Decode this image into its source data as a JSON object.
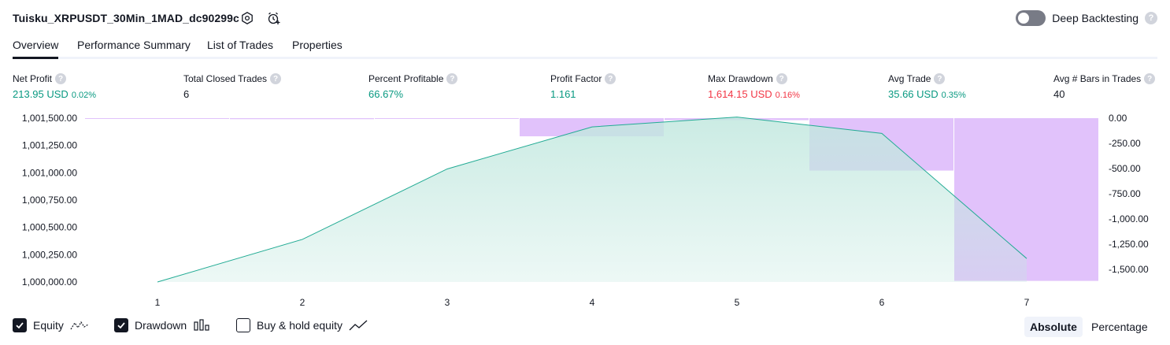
{
  "header": {
    "strategy_title": "Tuisku_XRPUSDT_30Min_1MAD_dc90299c",
    "settings_icon": "gear-icon",
    "alert_icon": "add-alert-icon",
    "deep_backtesting_label": "Deep Backtesting",
    "help_glyph": "?"
  },
  "tabs": [
    {
      "label": "Overview",
      "active": true
    },
    {
      "label": "Performance Summary",
      "active": false
    },
    {
      "label": "List of Trades",
      "active": false
    },
    {
      "label": "Properties",
      "active": false
    }
  ],
  "metrics": [
    {
      "label": "Net Profit",
      "value": "213.95 USD",
      "pct": "0.02%",
      "tone": "pos"
    },
    {
      "label": "Total Closed Trades",
      "value": "6",
      "pct": "",
      "tone": "neutral"
    },
    {
      "label": "Percent Profitable",
      "value": "66.67%",
      "pct": "",
      "tone": "pos"
    },
    {
      "label": "Profit Factor",
      "value": "1.161",
      "pct": "",
      "tone": "pos"
    },
    {
      "label": "Max Drawdown",
      "value": "1,614.15 USD",
      "pct": "0.16%",
      "tone": "neg"
    },
    {
      "label": "Avg Trade",
      "value": "35.66 USD",
      "pct": "0.35%",
      "tone": "pos"
    },
    {
      "label": "Avg # Bars in Trades",
      "value": "40",
      "pct": "",
      "tone": "neutral"
    }
  ],
  "chart_data": {
    "type": "area",
    "x": [
      1,
      2,
      3,
      4,
      5,
      6,
      7
    ],
    "x_tick_labels": [
      "1",
      "2",
      "3",
      "4",
      "5",
      "6",
      "7"
    ],
    "equity_series": {
      "values": [
        1000000.0,
        1000390.0,
        1001035.0,
        1001420.0,
        1001510.0,
        1001360.0,
        1000215.0
      ],
      "color": "#22ab94",
      "fill_color": "#c2e8df"
    },
    "drawdown_series": {
      "values": [
        -5,
        -10,
        -5,
        -180,
        -20,
        -520,
        -1614.15
      ],
      "color": "#e1c2fb"
    },
    "left_axis": {
      "ylim": [
        1000000,
        1001500
      ],
      "tick_values": [
        1000000,
        1000250,
        1000500,
        1000750,
        1001000,
        1001250,
        1001500
      ],
      "tick_labels": [
        "1,000,000.00",
        "1,000,250.00",
        "1,000,500.00",
        "1,000,750.00",
        "1,001,000.00",
        "1,001,250.00",
        "1,001,500.00"
      ]
    },
    "right_axis": {
      "ylim": [
        -1625,
        0
      ],
      "tick_values": [
        0,
        -250,
        -500,
        -750,
        -1000,
        -1250,
        -1500
      ],
      "tick_labels": [
        "0.00",
        "-250.00",
        "-500.00",
        "-750.00",
        "-1,000.00",
        "-1,250.00",
        "-1,500.00"
      ]
    },
    "grid": false
  },
  "legend": [
    {
      "label": "Equity",
      "checked": true,
      "icon": "equity-line-icon"
    },
    {
      "label": "Drawdown",
      "checked": true,
      "icon": "drawdown-bars-icon"
    },
    {
      "label": "Buy & hold equity",
      "checked": false,
      "icon": "buy-hold-line-icon"
    }
  ],
  "modes": [
    {
      "label": "Absolute",
      "active": true
    },
    {
      "label": "Percentage",
      "active": false
    }
  ]
}
